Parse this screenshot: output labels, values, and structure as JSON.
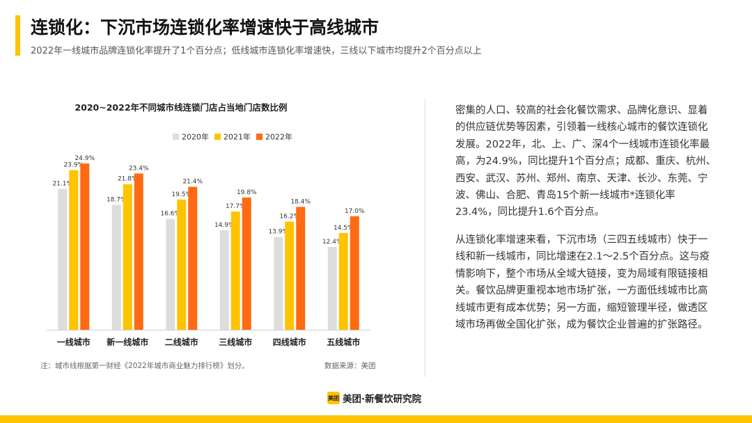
{
  "header": {
    "title": "连锁化：下沉市场连锁化率增速快于高线城市",
    "subtitle": "2022年一线城市品牌连锁化率提升了1个百分点；低线城市连锁化率增速快，三线以下城市均提升2个百分点以上"
  },
  "chart_data": {
    "type": "bar",
    "title": "2020~2022年不同城市线连锁门店占当地门店数比例",
    "categories": [
      "一线城市",
      "新一线城市",
      "二线城市",
      "三线城市",
      "四线城市",
      "五线城市"
    ],
    "series": [
      {
        "name": "2020年",
        "color": "#DDDDDD",
        "values": [
          21.1,
          18.7,
          16.6,
          14.9,
          13.9,
          12.4
        ],
        "labels": [
          "21.1%",
          "18.7%",
          "16.6%",
          "14.9%",
          "13.9%",
          "12.4%"
        ]
      },
      {
        "name": "2021年",
        "color": "#FFC300",
        "values": [
          23.9,
          21.8,
          19.5,
          17.7,
          16.2,
          14.5
        ],
        "labels": [
          "23.9%",
          "21.8%",
          "19.5%",
          "17.7%",
          "16.2%",
          "14.5%"
        ]
      },
      {
        "name": "2022年",
        "color": "#FF6A13",
        "values": [
          24.9,
          23.4,
          21.4,
          19.8,
          18.4,
          17.0
        ],
        "labels": [
          "24.9%",
          "23.4%",
          "21.4%",
          "19.8%",
          "18.4%",
          "17.0%"
        ]
      }
    ],
    "ylim": [
      0,
      25
    ],
    "grid": false,
    "legend": "top-center"
  },
  "right_panel": {
    "paragraph1": "密集的人口、较高的社会化餐饮需求、品牌化意识、显着的供应链优势等因素，引领着一线核心城市的餐饮连锁化发展。2022年，北、上、广、深4个一线城市连锁化率最高，为24.9%，同比提升1个百分点；成都、重庆、杭州、西安、武汉、苏州、郑州、南京、天津、长沙、东莞、宁波、佛山、合肥、青岛15个新一线城市*连锁化率23.4%，同比提升1.6个百分点。",
    "paragraph2": "从连锁化率增速来看，下沉市场（三四五线城市）快于一线和新一线城市，同比增速在2.1～2.5个百分点。这与疫情影响下，整个市场从全域大链接，变为局域有限链接相关。餐饮品牌更重视本地市场扩张，一方面低线城市比高线城市更有成本优势；另一方面，缩短管理半径，做透区域市场再做全国化扩张，成为餐饮企业普遍的扩张路径。"
  },
  "footer": {
    "note": "注：城市线根据第一财经《2022年城市商业魅力排行榜》划分。",
    "source": "数据来源：美团",
    "brand_logo_text": "美团",
    "brand_name": "美团·新餐饮研究院"
  },
  "colors": {
    "accent": "#FFC300",
    "orange": "#FF6A13",
    "gray": "#DDDDDD"
  }
}
